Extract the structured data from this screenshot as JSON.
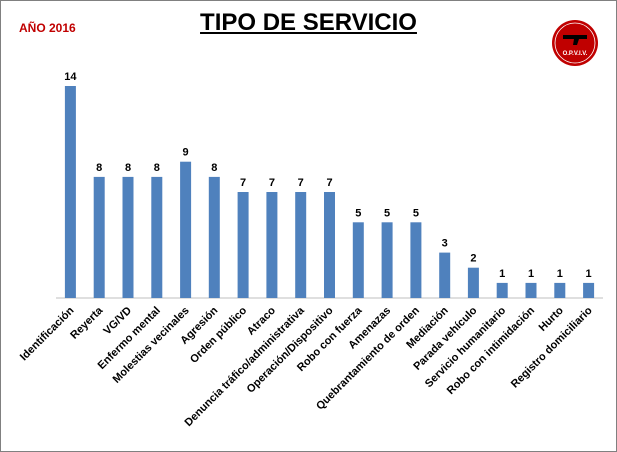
{
  "header": {
    "year_label": "AÑO 2016",
    "title": "TIPO DE SERVICIO"
  },
  "logo": {
    "text": "O.P.V.I.V.",
    "color": "#c00000"
  },
  "chart_data": {
    "type": "bar",
    "title": "TIPO DE SERVICIO",
    "xlabel": "",
    "ylabel": "",
    "ylim": [
      0,
      14
    ],
    "grid": false,
    "bar_color": "#4f81bd",
    "show_data_labels": true,
    "categories": [
      "Identificación",
      "Reyerta",
      "VG/VD",
      "Enfermo mental",
      "Molestias vecinales",
      "Agresión",
      "Orden público",
      "Atraco",
      "Denuncia tráfico/administrativa",
      "Operación/Dispositivo",
      "Robo con fuerza",
      "Amenazas",
      "Quebrantamiento de orden",
      "Mediación",
      "Parada vehículo",
      "Servicio humanitario",
      "Robo con intimidación",
      "Hurto",
      "Registro domiciliario"
    ],
    "values": [
      14,
      8,
      8,
      8,
      9,
      8,
      7,
      7,
      7,
      7,
      5,
      5,
      5,
      3,
      2,
      1,
      1,
      1,
      1
    ]
  }
}
